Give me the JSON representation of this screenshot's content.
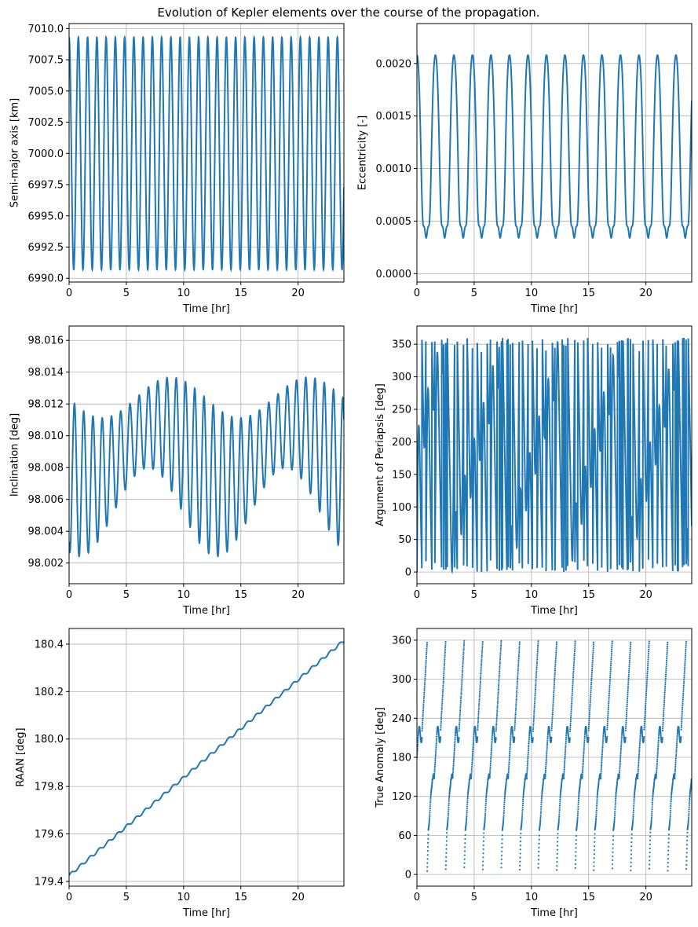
{
  "title": "Evolution of Kepler elements over the course of the propagation.",
  "line_color": "#1f77b4",
  "chart_data": [
    {
      "id": "sma",
      "type": "line",
      "xlabel": "Time [hr]",
      "ylabel": "Semi-major axis [km]",
      "xlim": [
        0,
        24
      ],
      "ylim": [
        6989.7,
        7010.4
      ],
      "xticks": [
        0,
        5,
        10,
        15,
        20
      ],
      "xtick_labels": [
        "0",
        "5",
        "10",
        "15",
        "20"
      ],
      "yticks": [
        6990.0,
        6992.5,
        6995.0,
        6997.5,
        7000.0,
        7002.5,
        7005.0,
        7007.5,
        7010.0
      ],
      "ytick_labels": [
        "6990.0",
        "6992.5",
        "6995.0",
        "6997.5",
        "7000.0",
        "7002.5",
        "7005.0",
        "7007.5",
        "7010.0"
      ],
      "grid": true,
      "series": [
        {
          "x_range": [
            0,
            24
          ],
          "samples": 2401,
          "model": "sinusoid",
          "mean": 7000.0,
          "amplitude": 9.3,
          "period_hr": 0.808,
          "phase_deg": 90,
          "approx_min": 6990.7,
          "approx_max": 7009.4
        }
      ]
    },
    {
      "id": "ecc",
      "type": "line",
      "xlabel": "Time [hr]",
      "ylabel": "Eccentricity [-]",
      "xlim": [
        0,
        24
      ],
      "ylim": [
        -8e-05,
        0.00238
      ],
      "xticks": [
        0,
        5,
        10,
        15,
        20
      ],
      "xtick_labels": [
        "0",
        "5",
        "10",
        "15",
        "20"
      ],
      "yticks": [
        0.0,
        0.0005,
        0.001,
        0.0015,
        0.002
      ],
      "ytick_labels": [
        "0.0000",
        "0.0005",
        "0.0010",
        "0.0015",
        "0.0020"
      ],
      "grid": true,
      "series": [
        {
          "x_range": [
            0,
            24
          ],
          "samples": 2401,
          "model": "vector_sum",
          "frozen_component": 0.00087,
          "short_period_amplitude": 0.00121,
          "period_hr": 1.616,
          "approx_min": 0.00013,
          "approx_max": 0.00225
        }
      ]
    },
    {
      "id": "inc",
      "type": "line",
      "xlabel": "Time [hr]",
      "ylabel": "Inclination [deg]",
      "xlim": [
        0,
        24
      ],
      "ylim": [
        98.0007,
        98.0169
      ],
      "xticks": [
        0,
        5,
        10,
        15,
        20
      ],
      "xtick_labels": [
        "0",
        "5",
        "10",
        "15",
        "20"
      ],
      "yticks": [
        98.002,
        98.004,
        98.006,
        98.008,
        98.01,
        98.012,
        98.014,
        98.016
      ],
      "ytick_labels": [
        "98.002",
        "98.004",
        "98.006",
        "98.008",
        "98.010",
        "98.012",
        "98.014",
        "98.016"
      ],
      "grid": true,
      "series": [
        {
          "x_range": [
            0,
            24
          ],
          "samples": 2401,
          "model": "beat",
          "mean": 98.0088,
          "slow_amplitude": 0.0018,
          "slow_period_hr": 12.0,
          "fast_amplitude": 0.0048,
          "fast_period_hr": 0.808,
          "approx_min": 98.0015,
          "approx_max": 98.0162
        }
      ]
    },
    {
      "id": "aop",
      "type": "line",
      "xlabel": "Time [hr]",
      "ylabel": "Argument of Periapsis [deg]",
      "xlim": [
        0,
        24
      ],
      "ylim": [
        -18,
        378
      ],
      "xticks": [
        0,
        5,
        10,
        15,
        20
      ],
      "xtick_labels": [
        "0",
        "5",
        "10",
        "15",
        "20"
      ],
      "yticks": [
        0,
        50,
        100,
        150,
        200,
        250,
        300,
        350
      ],
      "ytick_labels": [
        "0",
        "50",
        "100",
        "150",
        "200",
        "250",
        "300",
        "350"
      ],
      "grid": true,
      "series": [
        {
          "x_range": [
            0,
            24
          ],
          "samples": 2401,
          "model": "wrapped_angle",
          "range": [
            0,
            360
          ],
          "period_hr": 0.808,
          "note_visible": "rapid wraps between 0 and 360"
        }
      ]
    },
    {
      "id": "raan",
      "type": "line",
      "xlabel": "Time [hr]",
      "ylabel": "RAAN [deg]",
      "xlim": [
        0,
        24
      ],
      "ylim": [
        179.38,
        180.466
      ],
      "xticks": [
        0,
        5,
        10,
        15,
        20
      ],
      "xtick_labels": [
        "0",
        "5",
        "10",
        "15",
        "20"
      ],
      "yticks": [
        179.4,
        179.6,
        179.8,
        180.0,
        180.2,
        180.4
      ],
      "ytick_labels": [
        "179.4",
        "179.6",
        "179.8",
        "180.0",
        "180.2",
        "180.4"
      ],
      "grid": true,
      "series": [
        {
          "x_range": [
            0,
            24
          ],
          "samples": 2401,
          "model": "linear_with_ripple",
          "start": 179.425,
          "end": 180.415,
          "ripple_amplitude": 0.006,
          "ripple_period_hr": 0.808
        }
      ]
    },
    {
      "id": "ta",
      "type": "scatter",
      "xlabel": "Time [hr]",
      "ylabel": "True Anomaly [deg]",
      "xlim": [
        0,
        24
      ],
      "ylim": [
        -18,
        378
      ],
      "xticks": [
        0,
        5,
        10,
        15,
        20
      ],
      "xtick_labels": [
        "0",
        "5",
        "10",
        "15",
        "20"
      ],
      "yticks": [
        0,
        60,
        120,
        180,
        240,
        300,
        360
      ],
      "ytick_labels": [
        "0",
        "60",
        "120",
        "180",
        "240",
        "300",
        "360"
      ],
      "grid": true,
      "series": [
        {
          "x_range": [
            0,
            24
          ],
          "samples": 2400,
          "model": "wrapped_anomaly",
          "range": [
            0,
            360
          ],
          "period_hr": 1.616,
          "plateaus_deg": [
            150,
            215
          ],
          "first_wrap_hr": 0.9
        }
      ]
    }
  ]
}
